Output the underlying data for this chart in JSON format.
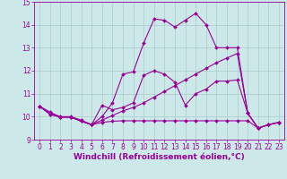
{
  "title": "",
  "xlabel": "Windchill (Refroidissement éolien,°C)",
  "ylabel": "",
  "background_color": "#cce8e8",
  "line_color": "#990099",
  "grid_color": "#aacccc",
  "xlim": [
    -0.5,
    23.5
  ],
  "ylim": [
    9.0,
    15.0
  ],
  "xticks": [
    0,
    1,
    2,
    3,
    4,
    5,
    6,
    7,
    8,
    9,
    10,
    11,
    12,
    13,
    14,
    15,
    16,
    17,
    18,
    19,
    20,
    21,
    22,
    23
  ],
  "yticks": [
    9,
    10,
    11,
    12,
    13,
    14,
    15
  ],
  "series": [
    {
      "x": [
        0,
        1,
        2,
        3,
        4,
        5,
        6,
        7,
        8,
        9,
        10,
        11,
        12,
        13,
        14,
        15,
        16,
        17,
        18,
        19,
        20,
        21,
        22,
        23
      ],
      "y": [
        10.45,
        10.2,
        9.98,
        9.98,
        9.8,
        9.65,
        9.75,
        9.8,
        9.82,
        9.82,
        9.82,
        9.82,
        9.82,
        9.82,
        9.82,
        9.82,
        9.82,
        9.82,
        9.82,
        9.82,
        9.82,
        9.5,
        9.65,
        9.75
      ]
    },
    {
      "x": [
        0,
        1,
        2,
        3,
        4,
        5,
        6,
        7,
        8,
        9,
        10,
        11,
        12,
        13,
        14,
        15,
        16,
        17,
        18,
        19,
        20,
        21,
        22,
        23
      ],
      "y": [
        10.45,
        10.15,
        10.0,
        10.0,
        9.85,
        9.65,
        9.85,
        10.05,
        10.25,
        10.4,
        10.6,
        10.85,
        11.1,
        11.35,
        11.6,
        11.85,
        12.1,
        12.35,
        12.55,
        12.75,
        10.15,
        9.5,
        9.65,
        9.75
      ]
    },
    {
      "x": [
        0,
        1,
        2,
        3,
        4,
        5,
        6,
        7,
        8,
        9,
        10,
        11,
        12,
        13,
        14,
        15,
        16,
        17,
        18,
        19,
        20,
        21,
        22,
        23
      ],
      "y": [
        10.45,
        10.1,
        9.98,
        9.98,
        9.8,
        9.65,
        10.5,
        10.3,
        10.4,
        10.6,
        11.8,
        12.0,
        11.85,
        11.5,
        10.5,
        11.0,
        11.2,
        11.55,
        11.55,
        11.6,
        10.15,
        9.5,
        9.65,
        9.75
      ]
    },
    {
      "x": [
        0,
        1,
        2,
        3,
        4,
        5,
        6,
        7,
        8,
        9,
        10,
        11,
        12,
        13,
        14,
        15,
        16,
        17,
        18,
        19,
        20,
        21,
        22,
        23
      ],
      "y": [
        10.45,
        10.1,
        9.98,
        9.98,
        9.8,
        9.65,
        10.0,
        10.6,
        11.85,
        11.95,
        13.2,
        14.25,
        14.2,
        13.9,
        14.2,
        14.5,
        14.0,
        13.0,
        13.0,
        13.0,
        10.15,
        9.5,
        9.65,
        9.75
      ]
    }
  ],
  "marker": "D",
  "markersize": 2.0,
  "linewidth": 0.8,
  "tick_fontsize": 5.5,
  "xlabel_fontsize": 6.5,
  "fig_width": 3.2,
  "fig_height": 2.0,
  "dpi": 100
}
